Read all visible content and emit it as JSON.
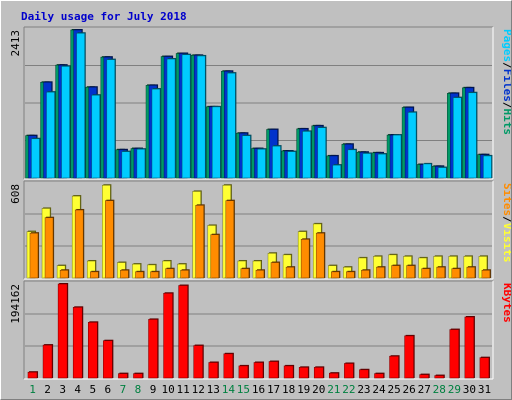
{
  "chart_data": {
    "type": "bar",
    "title": "Daily usage for July 2018",
    "colors": {
      "title": "#0000cc",
      "hits": "#009966",
      "files": "#0033cc",
      "pages": "#00ccff",
      "visits": "#ffff33",
      "sites": "#ff8c00",
      "kbytes": "#ff0000",
      "weekend_day": "#008040",
      "weekday": "#000000"
    },
    "categories": [
      "1",
      "2",
      "3",
      "4",
      "5",
      "6",
      "7",
      "8",
      "9",
      "10",
      "11",
      "12",
      "13",
      "14",
      "15",
      "16",
      "17",
      "18",
      "19",
      "20",
      "21",
      "22",
      "23",
      "24",
      "25",
      "26",
      "27",
      "28",
      "29",
      "30",
      "31"
    ],
    "weekend_days": [
      1,
      7,
      8,
      14,
      15,
      21,
      22,
      28,
      29
    ],
    "panels": [
      {
        "id": "hits",
        "ymax": 2413,
        "ylabel_max": "2413",
        "side_label": [
          {
            "text": "Hits",
            "color": "#009966"
          },
          {
            "text": "/",
            "color": "#000000"
          },
          {
            "text": "Files",
            "color": "#0033cc"
          },
          {
            "text": "/",
            "color": "#000000"
          },
          {
            "text": "Pages",
            "color": "#00ccff"
          }
        ],
        "series": [
          {
            "name": "Hits",
            "values": [
              690,
              1560,
              1840,
              2413,
              1480,
              1970,
              460,
              480,
              1510,
              1980,
              2030,
              2000,
              1160,
              1740,
              730,
              480,
              790,
              440,
              800,
              850,
              360,
              550,
              420,
              410,
              700,
              1150,
              220,
              190,
              1380,
              1470,
              380
            ]
          },
          {
            "name": "Files",
            "values": [
              690,
              1560,
              1840,
              2413,
              1480,
              1970,
              460,
              480,
              1510,
              1980,
              2030,
              2000,
              1160,
              1740,
              730,
              480,
              790,
              440,
              800,
              850,
              360,
              550,
              420,
              410,
              700,
              1150,
              220,
              190,
              1380,
              1470,
              380
            ]
          },
          {
            "name": "Pages",
            "values": [
              640,
              1400,
              1820,
              2360,
              1350,
              1930,
              430,
              470,
              1450,
              1940,
              2010,
              1990,
              1160,
              1710,
              690,
              470,
              520,
              430,
              760,
              820,
              210,
              460,
              400,
              390,
              700,
              1070,
              230,
              170,
              1310,
              1390,
              360
            ]
          }
        ]
      },
      {
        "id": "visits",
        "ymax": 608,
        "ylabel_max": "608",
        "side_label": [
          {
            "text": "Visits",
            "color": "#ffff33"
          },
          {
            "text": "/",
            "color": "#000000"
          },
          {
            "text": "Sites",
            "color": "#ff8c00"
          }
        ],
        "series": [
          {
            "name": "Visits",
            "values": [
              300,
              450,
              80,
              530,
              110,
              600,
              100,
              90,
              85,
              110,
              90,
              560,
              340,
              600,
              110,
              110,
              160,
              150,
              300,
              350,
              80,
              70,
              130,
              140,
              150,
              140,
              130,
              140,
              140,
              140,
              140
            ]
          },
          {
            "name": "Sites",
            "values": [
              290,
              390,
              50,
              440,
              40,
              500,
              50,
              40,
              40,
              60,
              50,
              470,
              280,
              500,
              60,
              50,
              100,
              70,
              250,
              290,
              40,
              40,
              50,
              70,
              80,
              80,
              60,
              70,
              60,
              70,
              50
            ]
          }
        ]
      },
      {
        "id": "kbytes",
        "ymax": 194162,
        "ylabel_max": "194162",
        "side_label": [
          {
            "text": "KBytes",
            "color": "#ff0000"
          }
        ],
        "series": [
          {
            "name": "KBytes",
            "values": [
              12000,
              68000,
              194162,
              146000,
              115000,
              77000,
              9000,
              9000,
              121000,
              175000,
              191000,
              67000,
              32000,
              50000,
              25000,
              32000,
              34000,
              25000,
              22000,
              22000,
              10000,
              30000,
              17000,
              9000,
              45000,
              87000,
              7000,
              5000,
              100000,
              126000,
              42000
            ]
          }
        ]
      }
    ]
  }
}
